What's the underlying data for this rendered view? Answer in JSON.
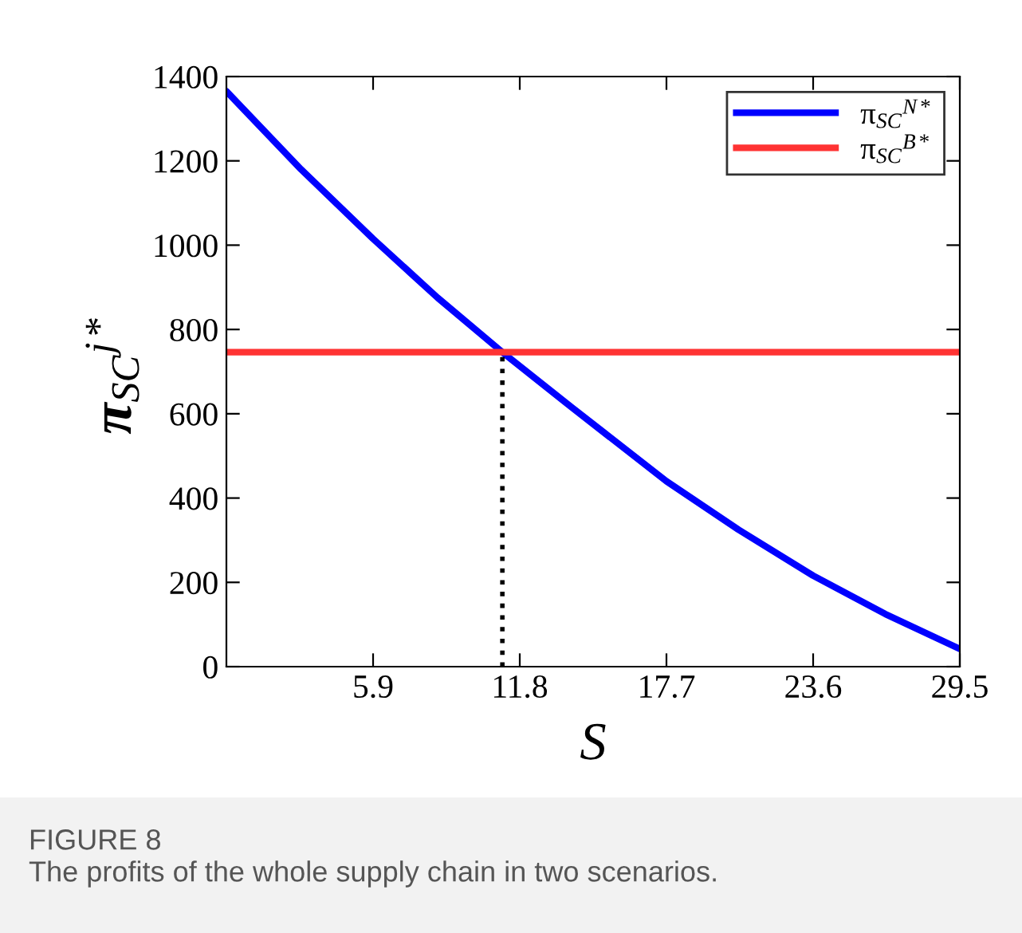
{
  "chart_data": {
    "type": "line",
    "xlabel": "S",
    "ylabel": "π$_{SC}$$^{j*}$",
    "x": [
      0,
      3,
      5.9,
      8.5,
      11.1,
      14,
      17.7,
      20.6,
      23.6,
      26.5,
      29.5
    ],
    "series": [
      {
        "name": "π$_{SC}$$^{N*}$",
        "color": "#0000ff",
        "values": [
          1365,
          1180,
          1015,
          875,
          746,
          610,
          440,
          325,
          216,
          125,
          42
        ]
      },
      {
        "name": "π$_{SC}$$^{B*}$",
        "color": "#ff3333",
        "values": [
          746,
          746,
          746,
          746,
          746,
          746,
          746,
          746,
          746,
          746,
          746
        ]
      }
    ],
    "xlim": [
      0,
      29.5
    ],
    "xticks": [
      5.9,
      11.8,
      17.7,
      23.6,
      29.5
    ],
    "ylim": [
      0,
      1400
    ],
    "yticks": [
      0,
      200,
      400,
      600,
      800,
      1000,
      1200,
      1400
    ],
    "ref_lines": [
      {
        "axis": "x",
        "value": 11.1,
        "label": null,
        "color": "#000000",
        "line_style": "dotted"
      }
    ],
    "legend": "top right",
    "grid": false,
    "marker": "none",
    "line_style": "solid",
    "annotations": [
      "FIGURE 8",
      "The profits of the whole supply chain in two scenarios."
    ]
  }
}
